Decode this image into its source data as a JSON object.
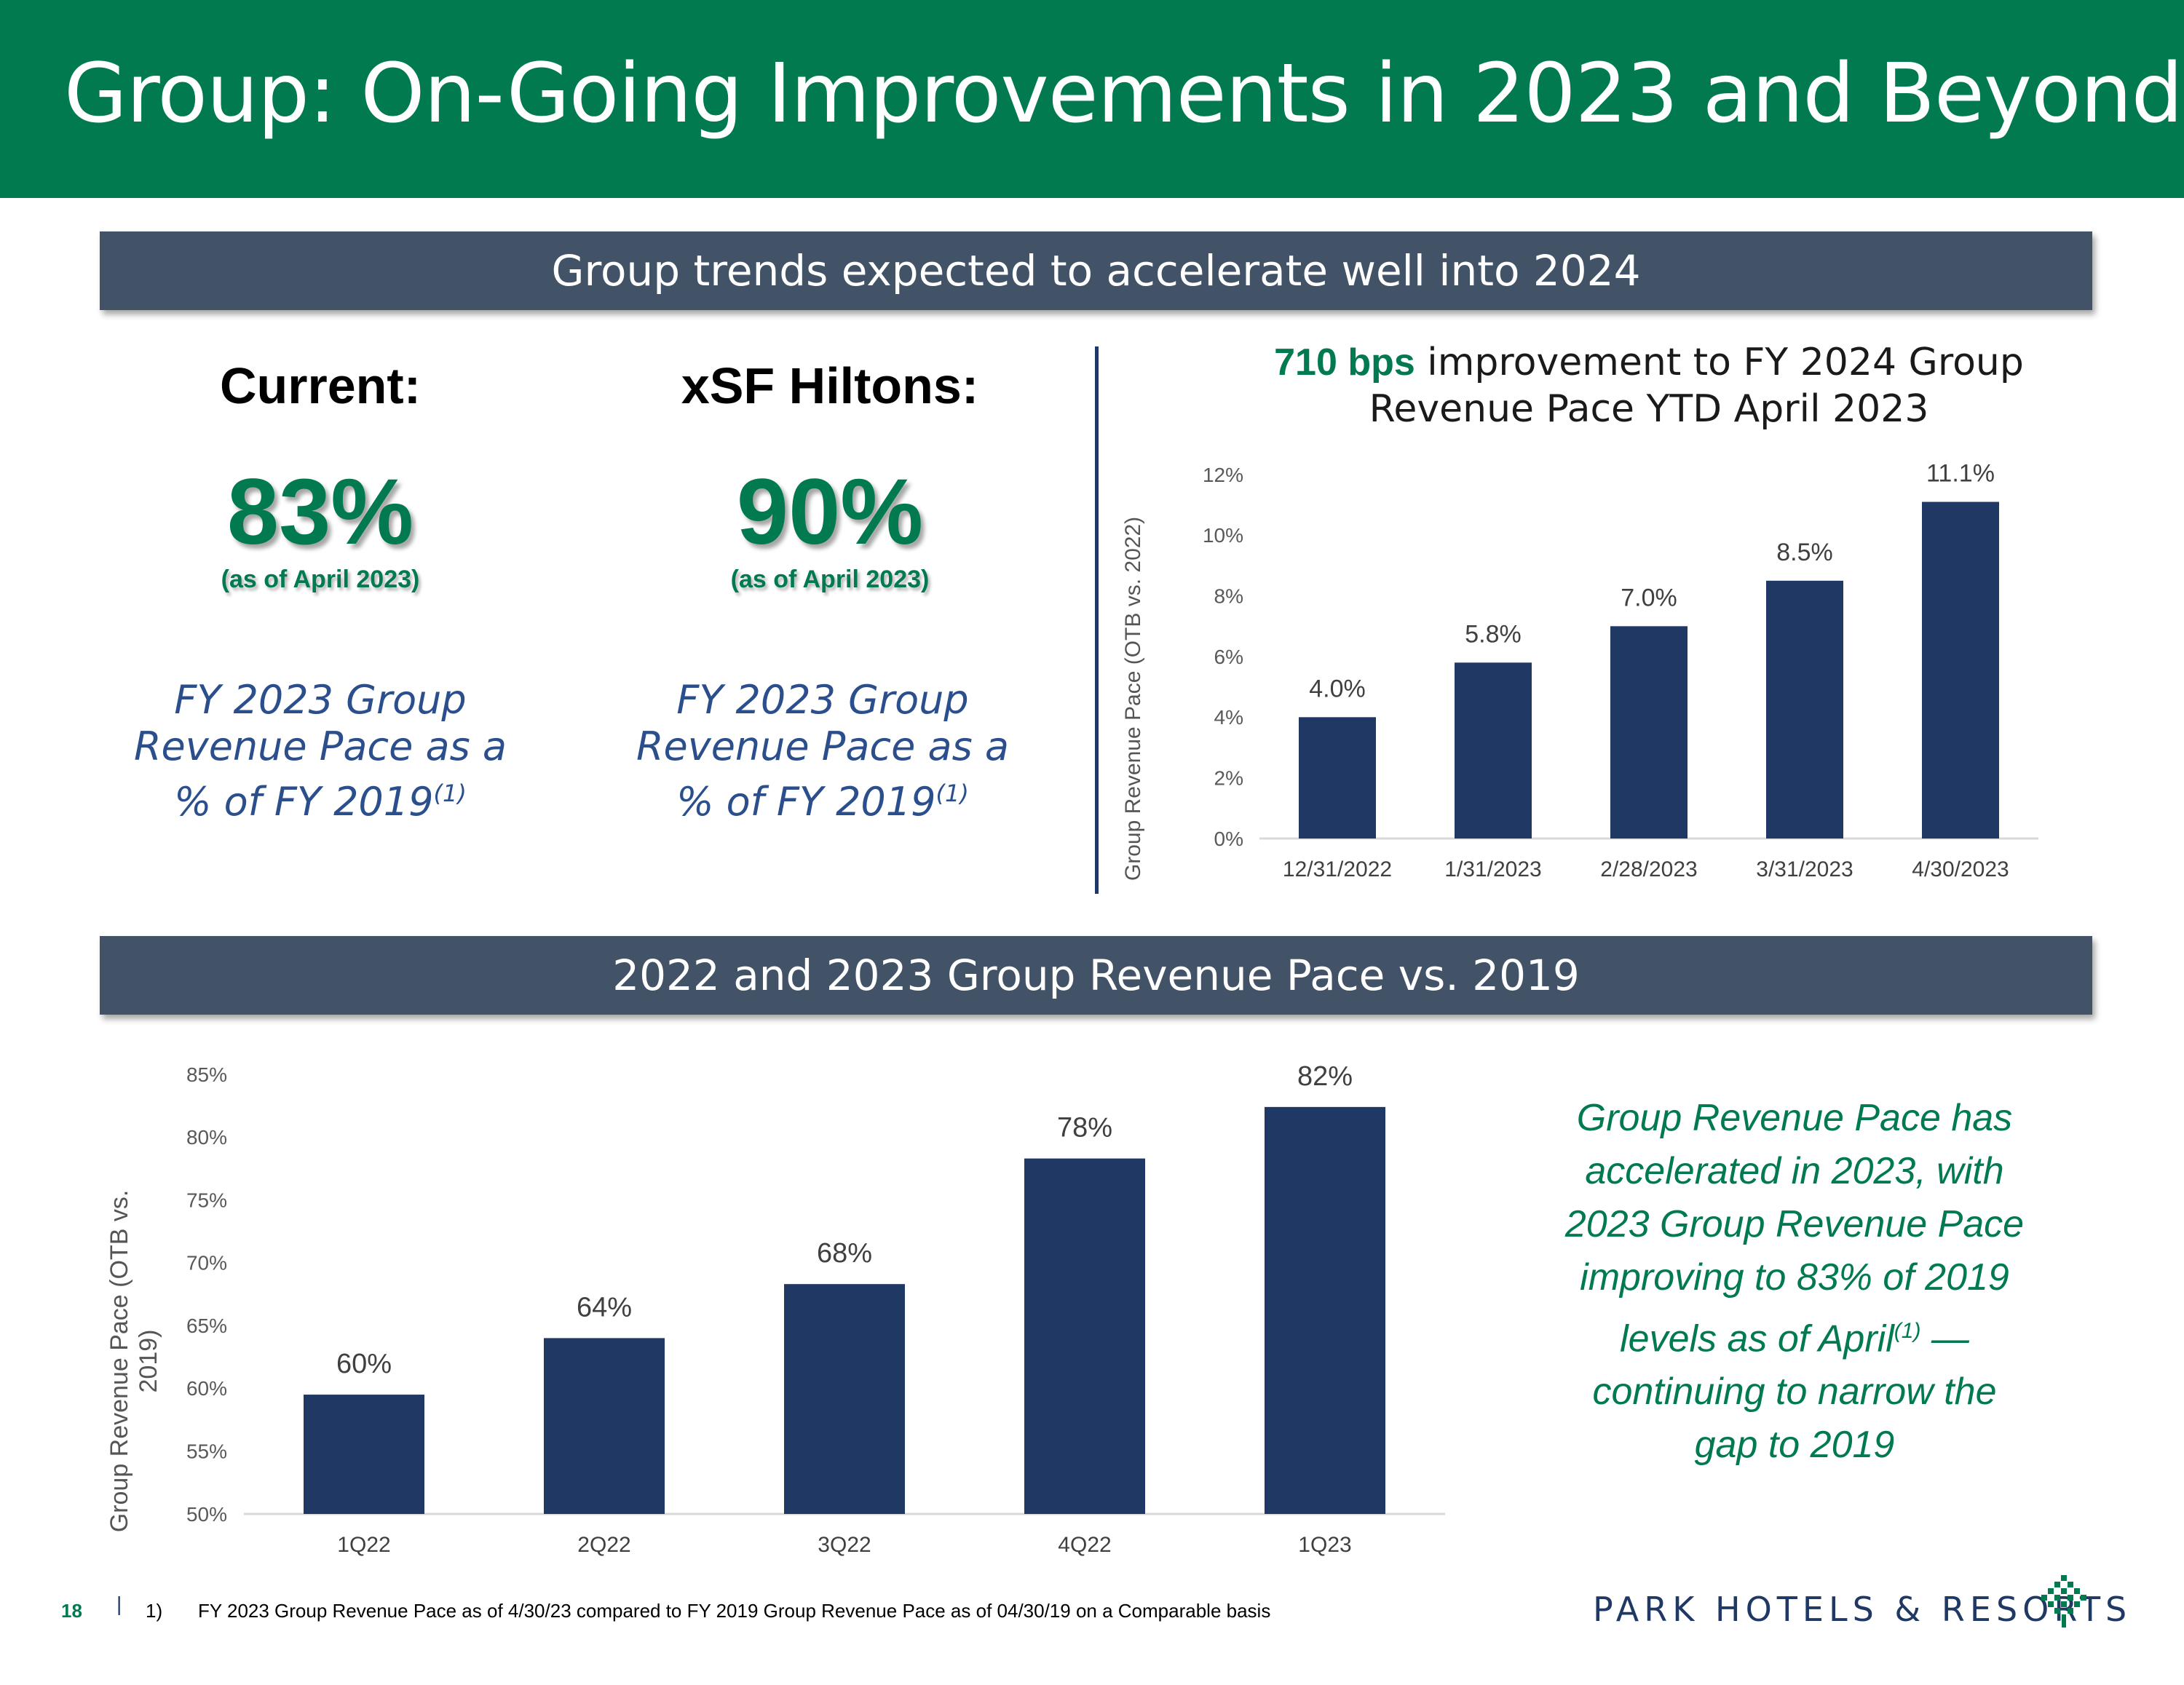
{
  "title": "Group: On-Going Improvements in 2023 and Beyond",
  "band_top": "Group trends expected to accelerate well into 2024",
  "band_bottom": "2022 and 2023 Group Revenue Pace vs. 2019",
  "kpis": [
    {
      "heading": "Current:",
      "value": "83%",
      "as_of": "(as of April 2023)",
      "desc_line1": "FY 2023 Group",
      "desc_line2": "Revenue Pace as a",
      "desc_line3": "% of FY 2019",
      "footnote": "(1)"
    },
    {
      "heading": "xSF Hiltons:",
      "value": "90%",
      "as_of": "(as of April 2023)",
      "desc_line1": "FY 2023 Group",
      "desc_line2": "Revenue Pace as a",
      "desc_line3": "% of FY 2019",
      "footnote": "(1)"
    }
  ],
  "chart_title": {
    "highlight": "710 bps",
    "rest_line1": " improvement to FY 2024 Group",
    "line2": "Revenue Pace YTD April 2023"
  },
  "callout": {
    "line1": "Group Revenue Pace has",
    "line2": "accelerated in 2023, with",
    "line3": "2023 Group Revenue Pace",
    "line4": "improving to 83% of 2019",
    "line5a": "levels as of April",
    "footnote": "(1)",
    "line5b": " —",
    "line6": "continuing to narrow the",
    "line7": "gap to 2019"
  },
  "footer": {
    "page": "18",
    "separator": "|",
    "index": "1)",
    "note": "FY 2023 Group Revenue Pace as of 4/30/23 compared to FY 2019 Group Revenue Pace as of 04/30/19 on a Comparable basis",
    "brand": "PARK HOTELS & RESORTS"
  },
  "colors": {
    "green": "#017A50",
    "navy": "#1F3864",
    "band": "#425368",
    "bar": "#203864"
  },
  "chart_data": [
    {
      "type": "bar",
      "title": "710 bps improvement to FY 2024 Group Revenue Pace YTD April 2023",
      "categories": [
        "12/31/2022",
        "1/31/2023",
        "2/28/2023",
        "3/31/2023",
        "4/30/2023"
      ],
      "values": [
        4.0,
        5.8,
        7.0,
        8.5,
        11.1
      ],
      "labels": [
        "4.0%",
        "5.8%",
        "7.0%",
        "8.5%",
        "11.1%"
      ],
      "ylabel": "Group Revenue Pace (OTB vs. 2022)",
      "ylim": [
        0,
        12
      ],
      "yticks": [
        0,
        2,
        4,
        6,
        8,
        10,
        12
      ],
      "ytick_labels": [
        "0%",
        "2%",
        "4%",
        "6%",
        "8%",
        "10%",
        "12%"
      ]
    },
    {
      "type": "bar",
      "title": "2022 and 2023 Group Revenue Pace vs. 2019",
      "categories": [
        "1Q22",
        "2Q22",
        "3Q22",
        "4Q22",
        "1Q23"
      ],
      "values": [
        59.5,
        64,
        68.3,
        78.3,
        82.4
      ],
      "labels": [
        "60%",
        "64%",
        "68%",
        "78%",
        "82%"
      ],
      "ylabel_line1": "Group Revenue Pace (OTB vs.",
      "ylabel_line2": "2019)",
      "ylim": [
        50,
        85
      ],
      "yticks": [
        50,
        55,
        60,
        65,
        70,
        75,
        80,
        85
      ],
      "ytick_labels": [
        "50%",
        "55%",
        "60%",
        "65%",
        "70%",
        "75%",
        "80%",
        "85%"
      ]
    }
  ]
}
